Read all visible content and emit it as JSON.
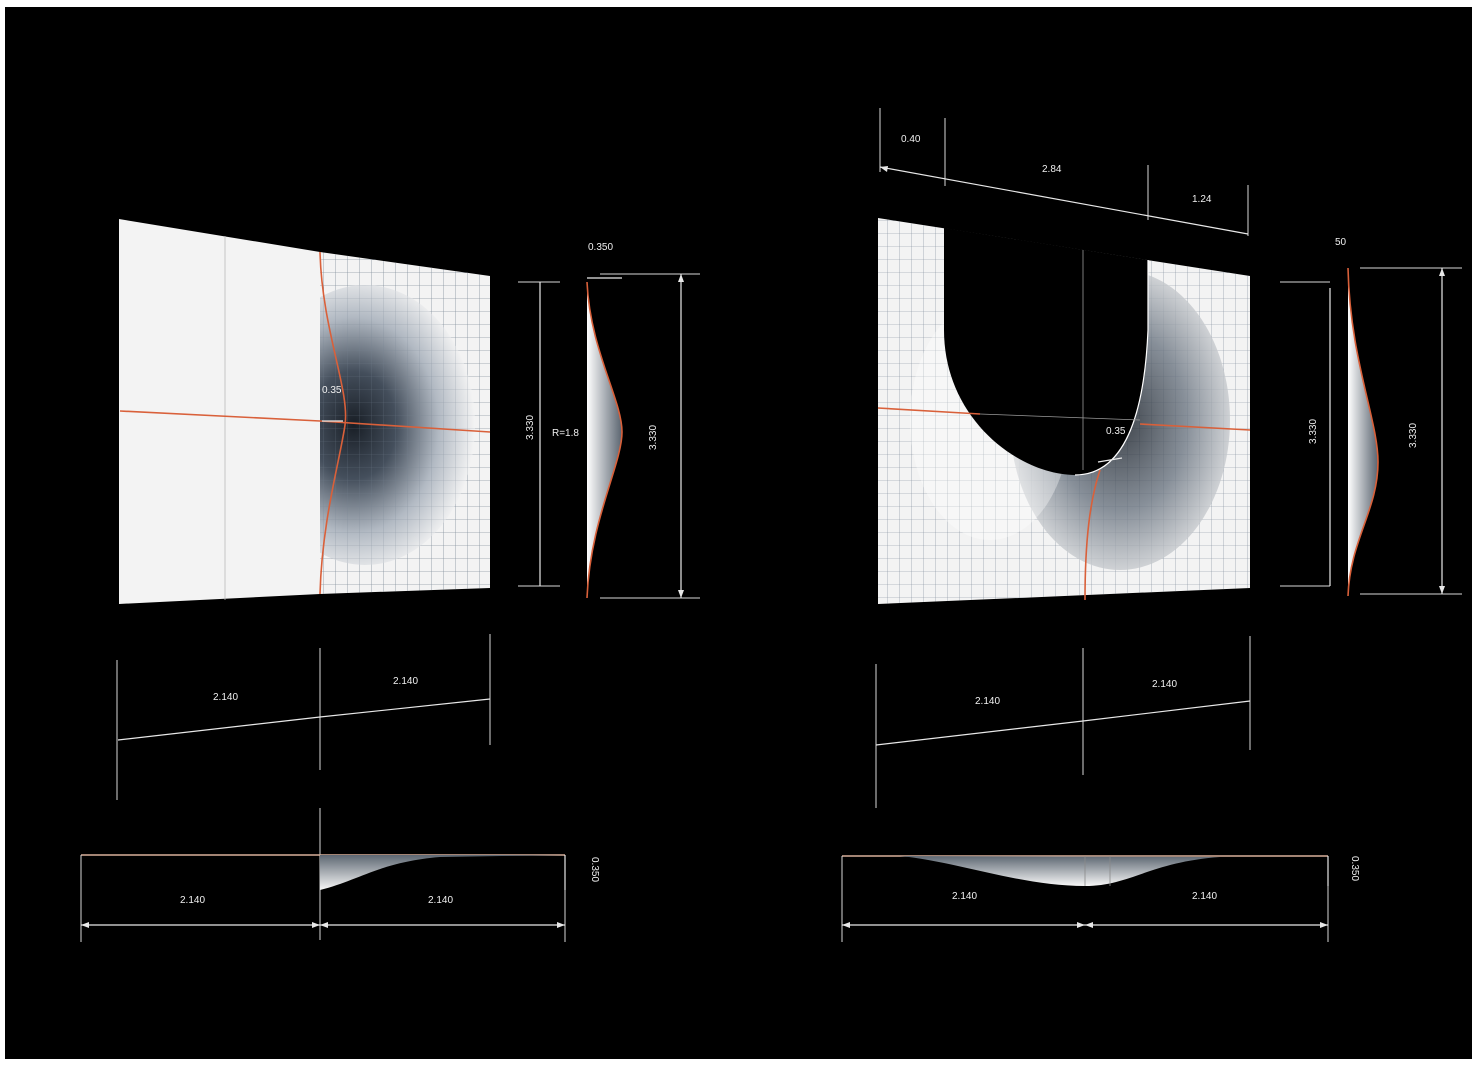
{
  "left": {
    "depth_top": "0.350",
    "inner_depth": "0.35",
    "radius": "R=1.8",
    "height_inner": "3.330",
    "height_outer": "3.330",
    "width_left": "2.140",
    "width_right": "2.140",
    "section_depth": "0.350",
    "section_left": "2.140",
    "section_right": "2.140"
  },
  "right": {
    "top_a": "0.40",
    "top_b": "2.84",
    "top_c": "1.24",
    "top_right": "50",
    "inner_depth": "0.35",
    "height_inner": "3.330",
    "height_outer": "3.330",
    "width_left": "2.140",
    "width_right": "2.140",
    "section_depth": "0.350",
    "section_left": "2.140",
    "section_right": "2.140"
  },
  "colors": {
    "background": "#000000",
    "curve": "#d9603a",
    "surface": "#f2f2f2",
    "dimension": "#e8e8e8"
  }
}
